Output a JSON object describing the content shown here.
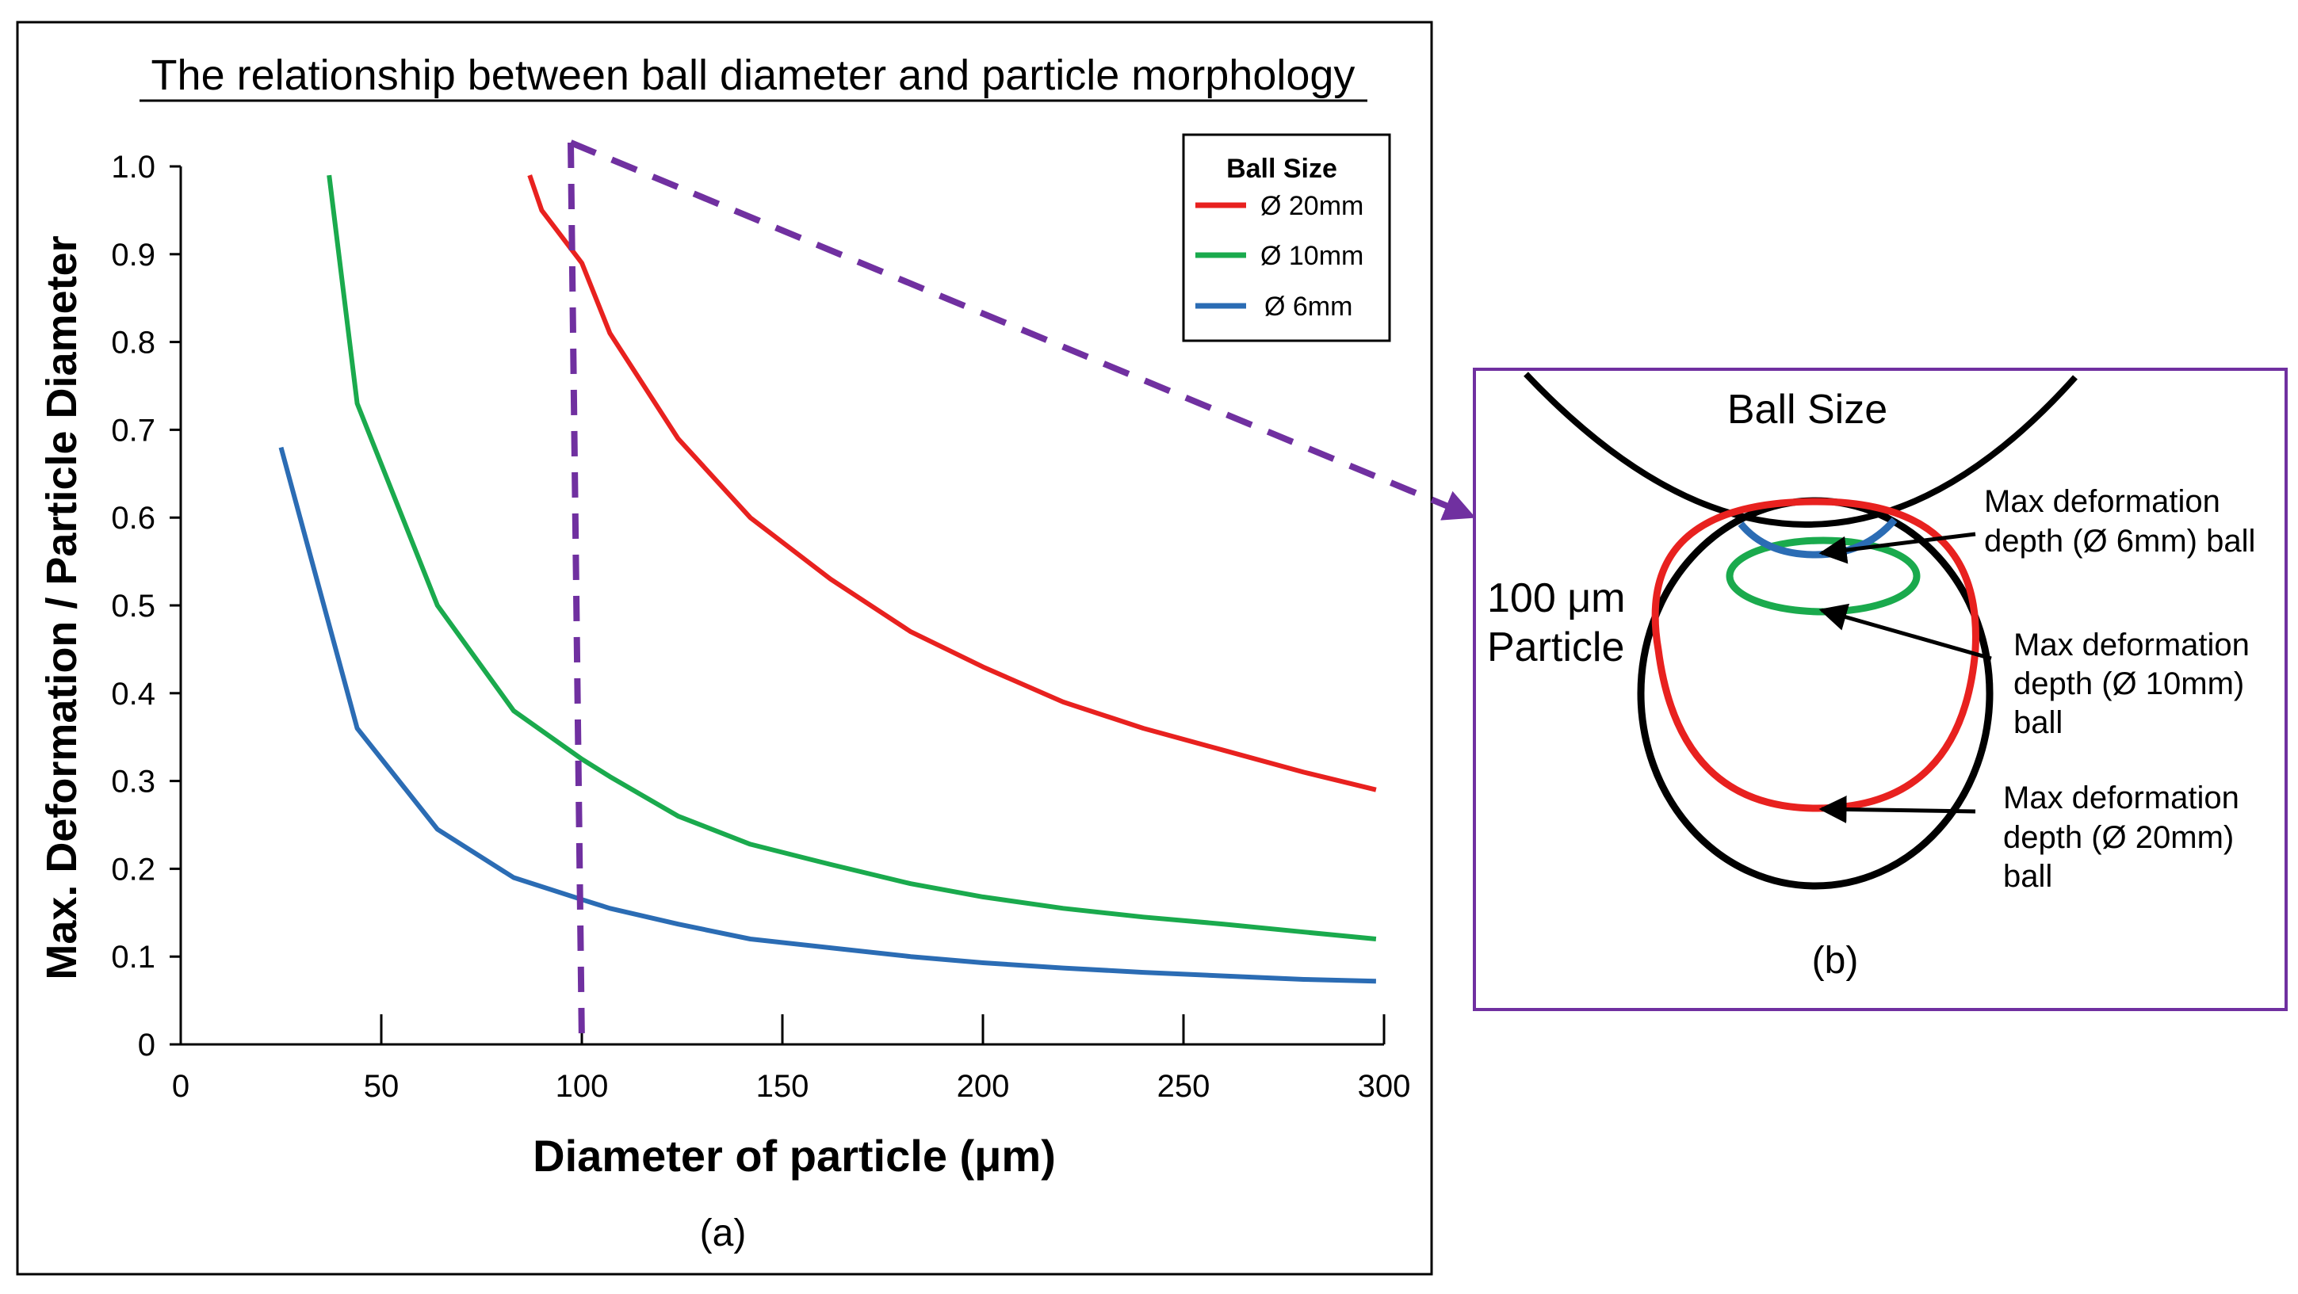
{
  "chart_data": {
    "type": "line",
    "title": "The relationship between ball diameter and particle morphology",
    "xlabel": "Diameter of particle (μm)",
    "ylabel": "Max. Deformation / Particle Diameter",
    "xlim": [
      0,
      300
    ],
    "ylim": [
      0,
      1.0
    ],
    "xticks": [
      0,
      50,
      100,
      150,
      200,
      250,
      300
    ],
    "yticks": [
      0,
      0.1,
      0.2,
      0.3,
      0.4,
      0.5,
      0.6,
      0.7,
      0.8,
      0.9,
      1.0
    ],
    "ytick_labels": [
      "0",
      "0.1",
      "0.2",
      "0.3",
      "0.4",
      "0.5",
      "0.6",
      "0.7",
      "0.8",
      "0.9",
      "1.0"
    ],
    "caption": "(a)",
    "legend": {
      "title": "Ball Size",
      "position": "top-right"
    },
    "series": [
      {
        "name": "Ø 20mm",
        "color": "#e8211f",
        "x": [
          87,
          90,
          100,
          107,
          124,
          142,
          162,
          182,
          200,
          220,
          240,
          260,
          280,
          298
        ],
        "y": [
          0.99,
          0.95,
          0.89,
          0.81,
          0.69,
          0.6,
          0.53,
          0.47,
          0.43,
          0.39,
          0.36,
          0.335,
          0.31,
          0.29
        ]
      },
      {
        "name": "Ø 10mm",
        "color": "#1aaa4d",
        "x": [
          37,
          44,
          64,
          83,
          100,
          107,
          124,
          142,
          162,
          182,
          200,
          220,
          240,
          260,
          280,
          298
        ],
        "y": [
          0.99,
          0.73,
          0.5,
          0.38,
          0.325,
          0.305,
          0.26,
          0.228,
          0.205,
          0.183,
          0.168,
          0.155,
          0.145,
          0.137,
          0.128,
          0.12
        ]
      },
      {
        "name": "Ø 6mm",
        "color": "#2b6cb4",
        "x": [
          25,
          44,
          64,
          83,
          100,
          107,
          124,
          142,
          162,
          182,
          200,
          220,
          240,
          260,
          280,
          298
        ],
        "y": [
          0.68,
          0.36,
          0.245,
          0.19,
          0.165,
          0.155,
          0.137,
          0.12,
          0.11,
          0.1,
          0.093,
          0.087,
          0.082,
          0.078,
          0.074,
          0.072
        ]
      }
    ],
    "marker_x": 100
  },
  "inset": {
    "title": "Ball Size",
    "particle_label_line1": "100 μm",
    "particle_label_line2": "Particle",
    "caption": "(b)",
    "annotations": [
      {
        "lines": [
          "Max deformation",
          "depth (Ø 6mm) ball"
        ]
      },
      {
        "lines": [
          "Max deformation",
          "depth (Ø 10mm)",
          "ball"
        ]
      },
      {
        "lines": [
          "Max deformation",
          "depth (Ø 20mm)",
          "ball"
        ]
      }
    ]
  },
  "colors": {
    "accent": "#7030a0",
    "frame": "#000000"
  }
}
